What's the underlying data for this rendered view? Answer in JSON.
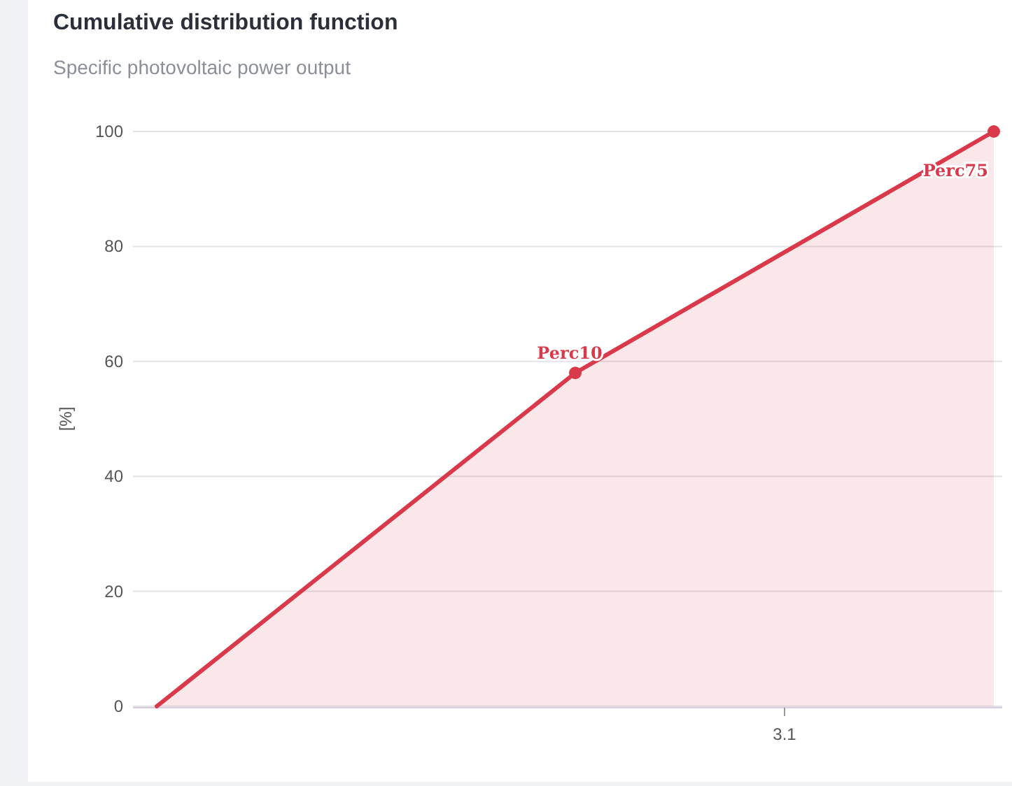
{
  "chart_data": {
    "type": "area",
    "title": "Cumulative distribution function",
    "subtitle": "Specific photovoltaic power output",
    "ylabel": "[%]",
    "categories": [
      null,
      null,
      null
    ],
    "series": [
      {
        "color": "#d9394a",
        "values": [
          0,
          58,
          100
        ],
        "value_labels": [
          null,
          "Perc10",
          "Perc75"
        ]
      }
    ],
    "ylim": [
      0,
      100
    ],
    "yticks": [
      0,
      20,
      40,
      60,
      80,
      100
    ],
    "grid": "y",
    "marker": "circle",
    "annotations": [
      "3.1"
    ]
  }
}
